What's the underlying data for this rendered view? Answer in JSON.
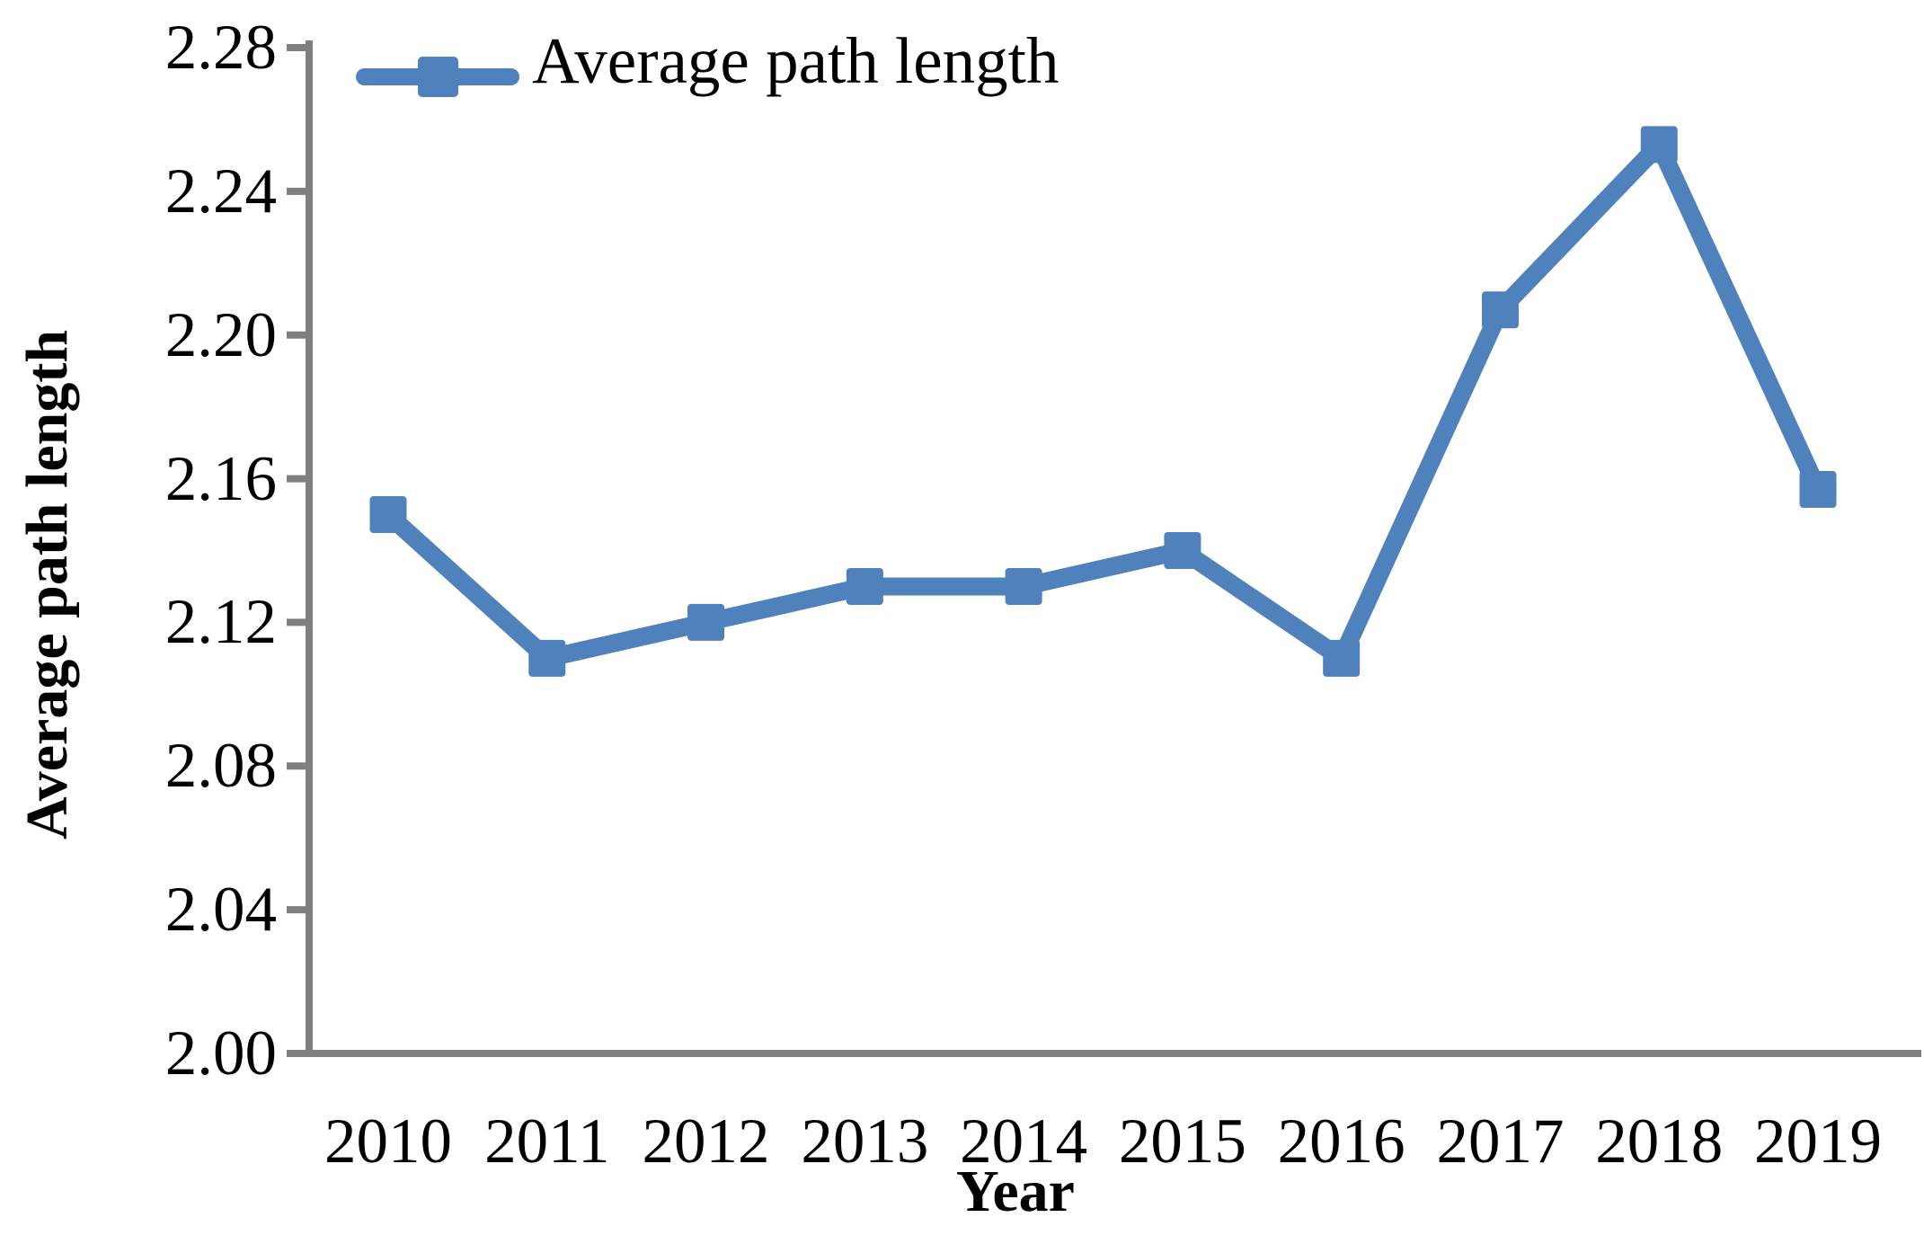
{
  "chart_data": {
    "type": "line",
    "title": "",
    "xlabel": "Year",
    "ylabel": "Average path length",
    "legend": [
      "Average path length"
    ],
    "legend_position": "top-left",
    "categories": [
      "2010",
      "2011",
      "2012",
      "2013",
      "2014",
      "2015",
      "2016",
      "2017",
      "2018",
      "2019"
    ],
    "series": [
      {
        "name": "Average path length",
        "values": [
          2.15,
          2.11,
          2.12,
          2.13,
          2.13,
          2.14,
          2.11,
          2.207,
          2.253,
          2.157
        ]
      }
    ],
    "ylim": [
      2.0,
      2.28
    ],
    "ytick_step": 0.04,
    "yticks": [
      "2.00",
      "2.04",
      "2.08",
      "2.12",
      "2.16",
      "2.20",
      "2.24",
      "2.28"
    ],
    "grid": false,
    "marker": "square",
    "line_color": "#4F81BD",
    "axis_color": "#7F7F7F",
    "text_color": "#000000"
  }
}
